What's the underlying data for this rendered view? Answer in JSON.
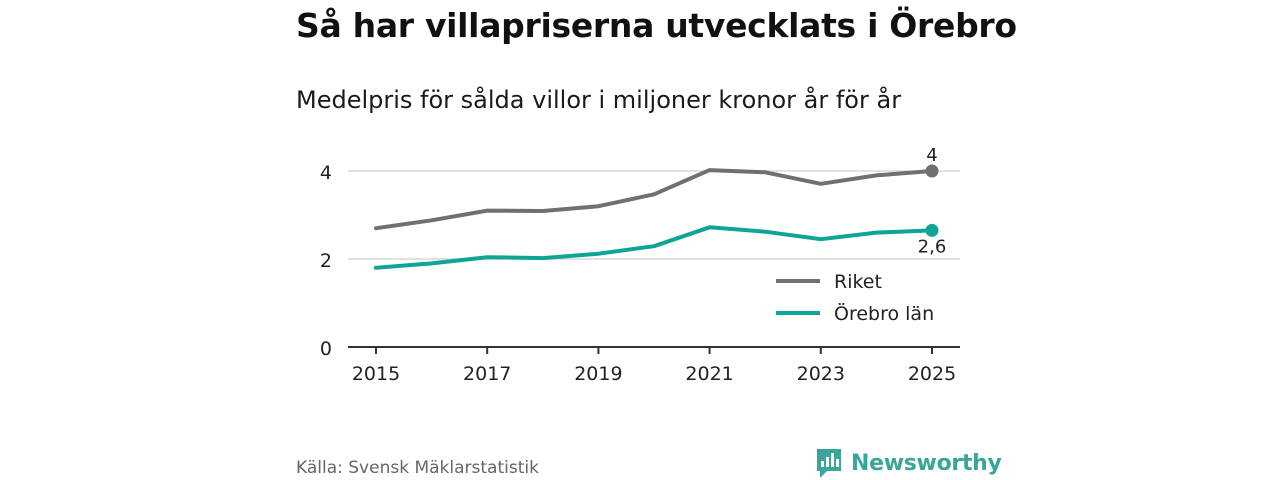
{
  "title": "Så har villapriserna utvecklats i Örebro",
  "subtitle": "Medelpris för sålda villor i miljoner kronor år för år",
  "source": "Källa: Svensk Mäklarstatistik",
  "brand": "Newsworthy",
  "colors": {
    "riket": "#707074",
    "orebro": "#10a398",
    "grid": "#d9d9d9",
    "axis": "#333333",
    "brand": "#3aa69b"
  },
  "chart_data": {
    "type": "line",
    "title": "Så har villapriserna utvecklats i Örebro",
    "subtitle": "Medelpris för sålda villor i miljoner kronor år för år",
    "xlabel": "",
    "ylabel": "",
    "x": [
      2015,
      2016,
      2017,
      2018,
      2019,
      2020,
      2021,
      2022,
      2023,
      2024,
      2025
    ],
    "x_ticks": [
      "2015",
      "2017",
      "2019",
      "2021",
      "2023",
      "2025"
    ],
    "x_tick_values": [
      2015,
      2017,
      2019,
      2021,
      2023,
      2025
    ],
    "y_ticks": [
      "0",
      "2",
      "4"
    ],
    "y_tick_values": [
      0,
      2,
      4
    ],
    "ylim": [
      0,
      4.1
    ],
    "grid": true,
    "legend_position": "lower-right",
    "series": [
      {
        "name": "Riket",
        "color": "#707074",
        "values": [
          2.7,
          2.88,
          3.1,
          3.09,
          3.2,
          3.47,
          4.02,
          3.97,
          3.71,
          3.9,
          4.0
        ],
        "end_label": "4"
      },
      {
        "name": "Örebro län",
        "color": "#10a398",
        "values": [
          1.8,
          1.9,
          2.04,
          2.02,
          2.12,
          2.29,
          2.72,
          2.62,
          2.45,
          2.6,
          2.65
        ],
        "end_label": "2,6"
      }
    ]
  }
}
